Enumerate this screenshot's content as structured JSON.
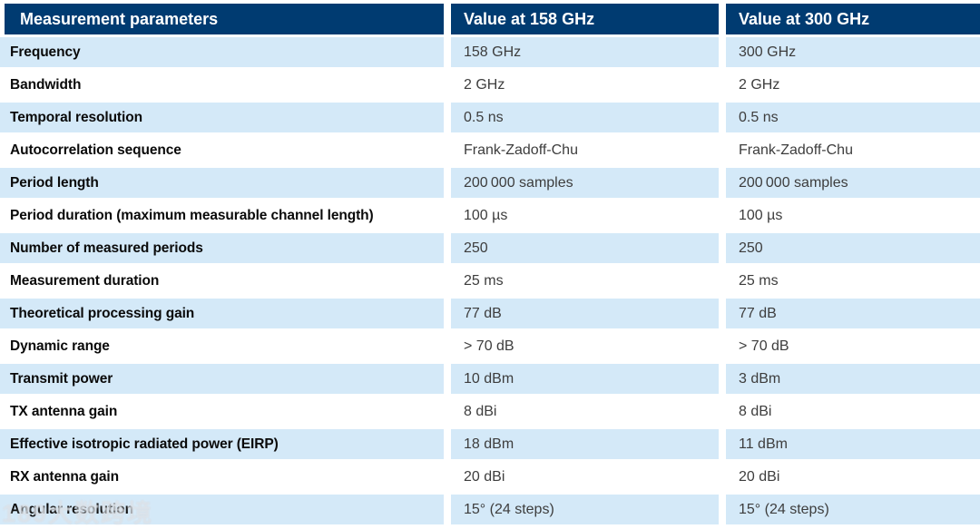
{
  "colors": {
    "header_bg": "#003B71",
    "header_text": "#FFFFFF",
    "row_highlight": "#D4E9F8",
    "param_text": "#0A0A0A",
    "value_text": "#3D3D3D"
  },
  "table": {
    "columns": [
      {
        "label": "Measurement parameters"
      },
      {
        "label": "Value at 158 GHz"
      },
      {
        "label": "Value at 300 GHz"
      }
    ],
    "rows": [
      {
        "param": "Frequency",
        "value_158": "158 GHz",
        "value_300": "300 GHz"
      },
      {
        "param": "Bandwidth",
        "value_158": "2 GHz",
        "value_300": "2 GHz"
      },
      {
        "param": "Temporal resolution",
        "value_158": "0.5 ns",
        "value_300": "0.5 ns"
      },
      {
        "param": "Autocorrelation sequence",
        "value_158": "Frank-Zadoff-Chu",
        "value_300": "Frank-Zadoff-Chu"
      },
      {
        "param": "Period length",
        "value_158": "200 000 samples",
        "value_300": "200 000 samples"
      },
      {
        "param": "Period duration (maximum measurable channel length)",
        "value_158": "100 µs",
        "value_300": "100 µs"
      },
      {
        "param": "Number of measured periods",
        "value_158": "250",
        "value_300": "250"
      },
      {
        "param": "Measurement duration",
        "value_158": "25 ms",
        "value_300": "25 ms"
      },
      {
        "param": "Theoretical processing gain",
        "value_158": "77 dB",
        "value_300": "77 dB"
      },
      {
        "param": "Dynamic range",
        "value_158": "> 70 dB",
        "value_300": "> 70 dB"
      },
      {
        "param": "Transmit power",
        "value_158": "10 dBm",
        "value_300": "3 dBm"
      },
      {
        "param": "TX antenna gain",
        "value_158": "8 dBi",
        "value_300": "8 dBi"
      },
      {
        "param": "Effective isotropic radiated power (EIRP)",
        "value_158": "18 dBm",
        "value_300": "11 dBm"
      },
      {
        "param": "RX antenna gain",
        "value_158": "20 dBi",
        "value_300": "20 dBi"
      },
      {
        "param": "Angular resolution",
        "value_158": "15° (24 steps)",
        "value_300": "15° (24 steps)"
      }
    ]
  },
  "watermark": {
    "text": "189大数跨境"
  }
}
